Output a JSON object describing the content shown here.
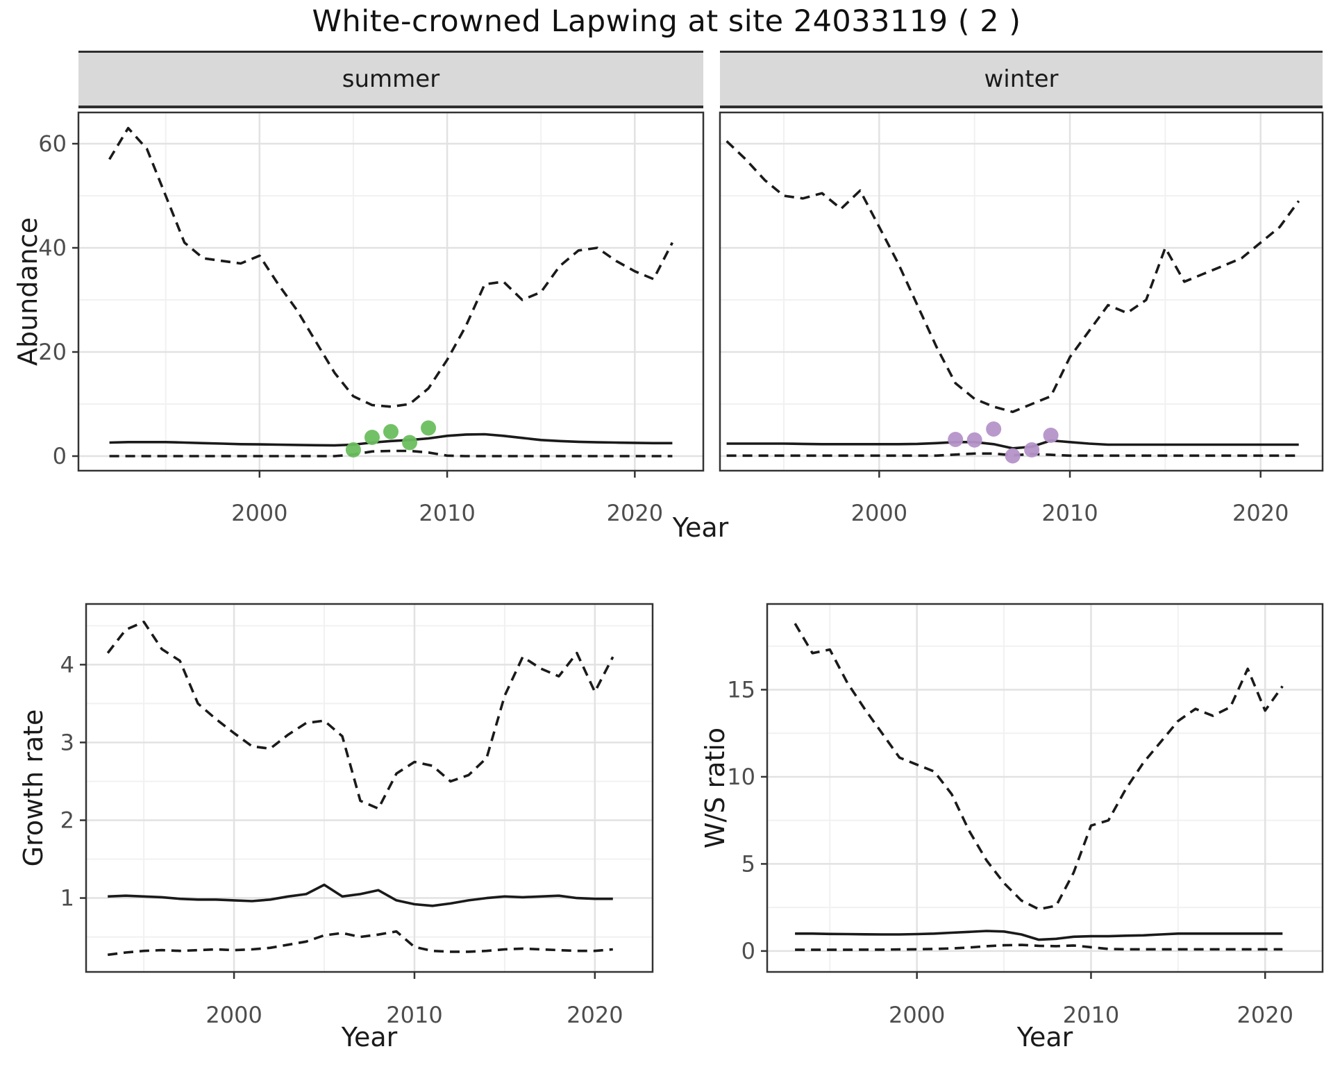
{
  "title": "White-crowned Lapwing at site 24033119 ( 2 )",
  "top_row": {
    "y_axis_title": "Abundance",
    "x_axis_title": "Year"
  },
  "bottom_left": {
    "y_axis_title": "Growth rate",
    "x_axis_title": "Year"
  },
  "bottom_right": {
    "y_axis_title": "W/S ratio",
    "x_axis_title": "Year"
  },
  "colors": {
    "background": "#FFFFFF",
    "line": "#1A1A1A",
    "summer_points": "#6BBE5F",
    "winter_points": "#B593C9",
    "strip_background": "#D9D9D9",
    "strip_border": "#2E2E2E",
    "panel_border": "#333333",
    "grid_major": "#E2E2E2",
    "grid_minor": "#F1F1F1",
    "tick_text": "#4D4D4D"
  },
  "chart_data": [
    {
      "id": "abundance_summer",
      "type": "line",
      "facet_label": "summer",
      "xlabel": "Year",
      "ylabel": "Abundance",
      "xlim": [
        1990.35,
        2023.65
      ],
      "ylim": [
        -2.8,
        66.0
      ],
      "xticks": [
        2000,
        2010,
        2020
      ],
      "yticks": [
        0,
        20,
        40,
        60
      ],
      "minor_xticks": [
        1995,
        2005,
        2015
      ],
      "minor_yticks": [
        10,
        30,
        50
      ],
      "x": [
        1992,
        1993,
        1994,
        1995,
        1996,
        1997,
        1998,
        1999,
        2000,
        2001,
        2002,
        2003,
        2004,
        2005,
        2006,
        2007,
        2008,
        2009,
        2010,
        2011,
        2012,
        2013,
        2014,
        2015,
        2016,
        2017,
        2018,
        2019,
        2020,
        2021,
        2022
      ],
      "series": [
        {
          "name": "upper_95ci",
          "style": "dashed",
          "values": [
            57,
            63,
            59,
            50,
            41,
            38,
            37.5,
            37,
            38.5,
            33,
            28,
            22,
            16,
            11.5,
            9.8,
            9.5,
            10,
            13,
            18.5,
            25,
            33,
            33.5,
            30,
            31.5,
            36.5,
            39.5,
            40,
            37.5,
            35.5,
            34,
            41
          ]
        },
        {
          "name": "median",
          "style": "solid",
          "values": [
            2.6,
            2.7,
            2.7,
            2.7,
            2.6,
            2.5,
            2.4,
            2.3,
            2.25,
            2.2,
            2.15,
            2.1,
            2.05,
            2.2,
            2.6,
            2.9,
            3.1,
            3.4,
            3.9,
            4.15,
            4.2,
            3.9,
            3.5,
            3.1,
            2.9,
            2.75,
            2.65,
            2.6,
            2.55,
            2.5,
            2.5
          ]
        },
        {
          "name": "lower_95ci",
          "style": "dashed",
          "values": [
            0,
            0,
            0,
            0,
            0,
            0,
            0,
            0,
            0,
            0,
            0,
            0,
            0,
            0.3,
            0.9,
            1,
            1,
            0.7,
            0.1,
            0,
            0,
            0,
            0,
            0,
            0,
            0,
            0,
            0,
            0,
            0,
            0
          ]
        }
      ],
      "observations": {
        "type": "scatter",
        "color_key": "summer_points",
        "x": [
          2005,
          2006,
          2007,
          2008,
          2009
        ],
        "y": [
          1.2,
          3.6,
          4.7,
          2.6,
          5.4
        ]
      }
    },
    {
      "id": "abundance_winter",
      "type": "line",
      "facet_label": "winter",
      "xlabel": "Year",
      "ylabel": "Abundance",
      "xlim": [
        1991.65,
        2023.25
      ],
      "ylim": [
        -2.8,
        66.0
      ],
      "xticks": [
        2000,
        2010,
        2020
      ],
      "yticks": [
        0,
        20,
        40,
        60
      ],
      "minor_xticks": [
        1995,
        2005,
        2015
      ],
      "minor_yticks": [
        10,
        30,
        50
      ],
      "x": [
        1992,
        1993,
        1994,
        1995,
        1996,
        1997,
        1998,
        1999,
        2000,
        2001,
        2002,
        2003,
        2004,
        2005,
        2006,
        2007,
        2008,
        2009,
        2010,
        2011,
        2012,
        2013,
        2014,
        2015,
        2016,
        2017,
        2018,
        2019,
        2020,
        2021,
        2022
      ],
      "series": [
        {
          "name": "upper_95ci",
          "style": "dashed",
          "values": [
            60.5,
            57,
            53,
            50,
            49.5,
            50.5,
            47.5,
            51,
            44,
            37,
            29,
            21,
            14,
            11,
            9.5,
            8.5,
            10,
            11.5,
            19,
            24,
            29,
            27.5,
            30,
            40,
            33.5,
            35,
            36.5,
            38,
            41,
            44,
            49
          ]
        },
        {
          "name": "median",
          "style": "solid",
          "values": [
            2.4,
            2.4,
            2.4,
            2.4,
            2.35,
            2.3,
            2.3,
            2.3,
            2.3,
            2.3,
            2.35,
            2.5,
            2.7,
            2.7,
            2.3,
            1.5,
            1.8,
            3.0,
            2.7,
            2.4,
            2.2,
            2.2,
            2.2,
            2.2,
            2.2,
            2.2,
            2.2,
            2.2,
            2.2,
            2.2,
            2.2
          ]
        },
        {
          "name": "lower_95ci",
          "style": "dashed",
          "values": [
            0.1,
            0.1,
            0.1,
            0.1,
            0.1,
            0.1,
            0.1,
            0.1,
            0.1,
            0.1,
            0.1,
            0.1,
            0.3,
            0.5,
            0.5,
            0.15,
            0.4,
            0.25,
            0.1,
            0.1,
            0.1,
            0.1,
            0.1,
            0.1,
            0.1,
            0.1,
            0.1,
            0.1,
            0.1,
            0.1,
            0.1
          ]
        }
      ],
      "observations": {
        "type": "scatter",
        "color_key": "winter_points",
        "x": [
          2004,
          2005,
          2006,
          2007,
          2008,
          2009
        ],
        "y": [
          3.2,
          3.1,
          5.2,
          0.05,
          1.2,
          4.0
        ]
      }
    },
    {
      "id": "growth_rate",
      "type": "line",
      "facet_label": "",
      "xlabel": "Year",
      "ylabel": "Growth rate",
      "xlim": [
        1991.8,
        2023.2
      ],
      "ylim": [
        0.05,
        4.78
      ],
      "xticks": [
        2000,
        2010,
        2020
      ],
      "yticks": [
        1,
        2,
        3,
        4
      ],
      "minor_xticks": [
        1995,
        2005,
        2015
      ],
      "minor_yticks": [
        0.5,
        1.5,
        2.5,
        3.5,
        4.5
      ],
      "x": [
        1993,
        1994,
        1995,
        1996,
        1997,
        1998,
        1999,
        2000,
        2001,
        2002,
        2003,
        2004,
        2005,
        2006,
        2007,
        2008,
        2009,
        2010,
        2011,
        2012,
        2013,
        2014,
        2015,
        2016,
        2017,
        2018,
        2019,
        2020,
        2021
      ],
      "series": [
        {
          "name": "upper_95ci",
          "style": "dashed",
          "values": [
            4.15,
            4.45,
            4.55,
            4.2,
            4.05,
            3.5,
            3.3,
            3.12,
            2.95,
            2.92,
            3.1,
            3.25,
            3.28,
            3.08,
            2.25,
            2.15,
            2.6,
            2.75,
            2.7,
            2.5,
            2.58,
            2.8,
            3.6,
            4.1,
            3.95,
            3.85,
            4.15,
            3.65,
            4.1
          ]
        },
        {
          "name": "median",
          "style": "solid",
          "values": [
            1.02,
            1.03,
            1.02,
            1.01,
            0.99,
            0.98,
            0.98,
            0.97,
            0.96,
            0.98,
            1.02,
            1.05,
            1.17,
            1.02,
            1.05,
            1.1,
            0.97,
            0.92,
            0.9,
            0.93,
            0.97,
            1.0,
            1.02,
            1.01,
            1.02,
            1.03,
            1.0,
            0.99,
            0.99
          ]
        },
        {
          "name": "lower_95ci",
          "style": "dashed",
          "values": [
            0.27,
            0.3,
            0.32,
            0.33,
            0.32,
            0.33,
            0.34,
            0.33,
            0.34,
            0.36,
            0.4,
            0.44,
            0.52,
            0.55,
            0.5,
            0.53,
            0.57,
            0.37,
            0.32,
            0.31,
            0.31,
            0.32,
            0.34,
            0.35,
            0.34,
            0.33,
            0.32,
            0.32,
            0.34
          ]
        }
      ]
    },
    {
      "id": "ws_ratio",
      "type": "line",
      "facet_label": "",
      "xlabel": "Year",
      "ylabel": "W/S ratio",
      "xlim": [
        1991.4,
        2023.3
      ],
      "ylim": [
        -1.2,
        19.92
      ],
      "xticks": [
        2000,
        2010,
        2020
      ],
      "yticks": [
        0,
        5,
        10,
        15
      ],
      "minor_xticks": [
        1995,
        2005,
        2015
      ],
      "minor_yticks": [
        2.5,
        7.5,
        12.5,
        17.5
      ],
      "x": [
        1993,
        1994,
        1995,
        1996,
        1997,
        1998,
        1999,
        2000,
        2001,
        2002,
        2003,
        2004,
        2005,
        2006,
        2007,
        2008,
        2009,
        2010,
        2011,
        2012,
        2013,
        2014,
        2015,
        2016,
        2017,
        2018,
        2019,
        2020,
        2021
      ],
      "series": [
        {
          "name": "upper_95ci",
          "style": "dashed",
          "values": [
            18.8,
            17.1,
            17.3,
            15.4,
            13.9,
            12.5,
            11.1,
            10.7,
            10.3,
            9.0,
            6.9,
            5.2,
            3.9,
            2.9,
            2.4,
            2.6,
            4.5,
            7.2,
            7.5,
            9.3,
            10.8,
            12.0,
            13.2,
            13.9,
            13.5,
            14.0,
            16.2,
            13.8,
            15.2
          ]
        },
        {
          "name": "median",
          "style": "solid",
          "values": [
            1.0,
            1.0,
            0.98,
            0.97,
            0.96,
            0.95,
            0.95,
            0.97,
            1.0,
            1.05,
            1.1,
            1.15,
            1.12,
            0.95,
            0.65,
            0.7,
            0.82,
            0.85,
            0.85,
            0.88,
            0.9,
            0.95,
            1.0,
            1.0,
            1.0,
            1.0,
            1.0,
            1.0,
            1.0
          ]
        },
        {
          "name": "lower_95ci",
          "style": "dashed",
          "values": [
            0.07,
            0.07,
            0.07,
            0.07,
            0.08,
            0.08,
            0.09,
            0.1,
            0.12,
            0.15,
            0.2,
            0.28,
            0.33,
            0.35,
            0.3,
            0.28,
            0.32,
            0.22,
            0.12,
            0.1,
            0.1,
            0.1,
            0.1,
            0.1,
            0.1,
            0.1,
            0.1,
            0.1,
            0.1
          ]
        }
      ]
    }
  ]
}
